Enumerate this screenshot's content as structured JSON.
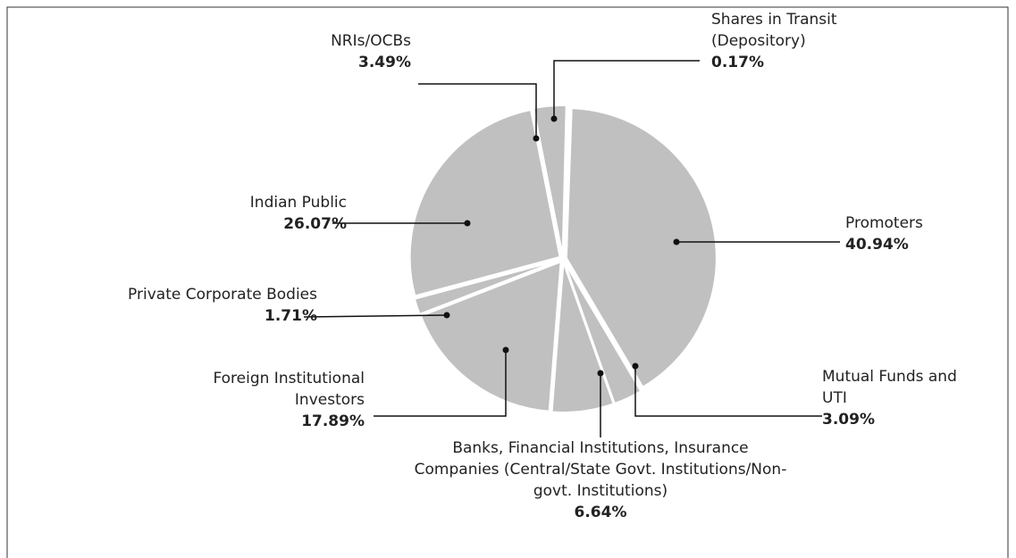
{
  "chart_data": {
    "type": "pie",
    "categories": [
      "Promoters",
      "Mutual Funds and UTI",
      "Banks, Financial Institutions, Insurance Companies (Central/State Govt. Institutions/Non-govt. Institutions)",
      "Foreign Institutional Investors",
      "Private Corporate Bodies",
      "Indian Public",
      "NRIs/OCBs",
      "Shares in Transit (Depository)"
    ],
    "values": [
      40.94,
      3.09,
      6.64,
      17.89,
      1.71,
      26.07,
      3.49,
      0.17
    ],
    "value_labels": [
      "40.94%",
      "3.09%",
      "6.64%",
      "17.89%",
      "1.71%",
      "26.07%",
      "3.49%",
      "0.17%"
    ],
    "color": "#c0c0c0"
  }
}
